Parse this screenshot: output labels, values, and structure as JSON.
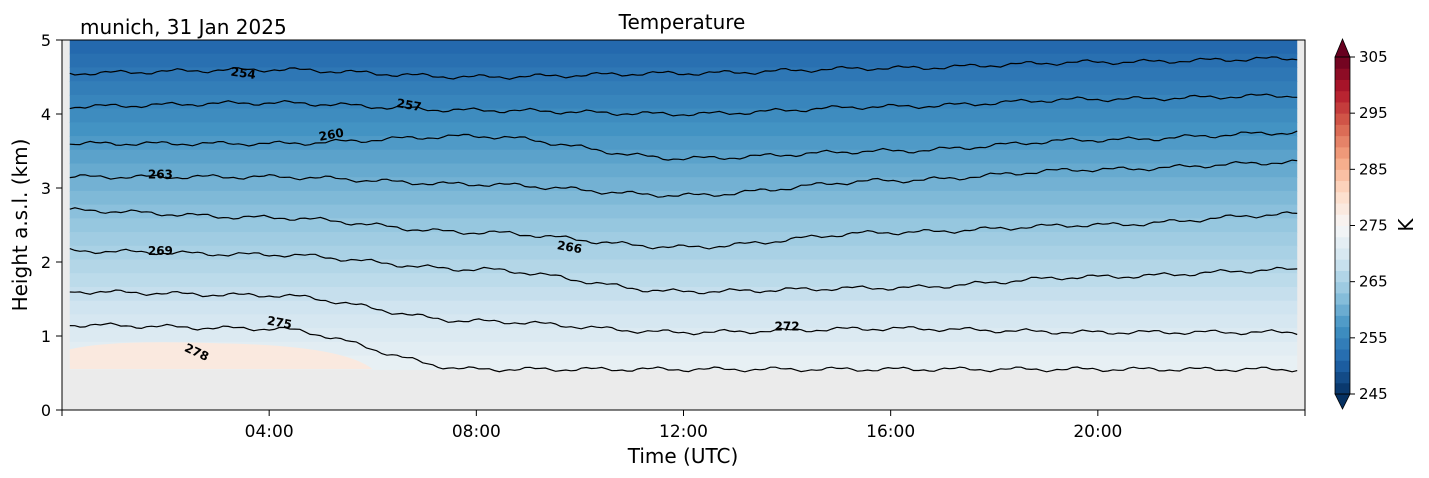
{
  "figure": {
    "title": "Temperature",
    "location_date": "munich, 31 Jan 2025"
  },
  "chart_data": {
    "type": "heatmap",
    "title": "Temperature",
    "xlabel": "Time (UTC)",
    "ylabel": "Height a.s.l. (km)",
    "x_range_hours": [
      0,
      24
    ],
    "xticks": [
      {
        "value": 4,
        "label": "04:00"
      },
      {
        "value": 8,
        "label": "08:00"
      },
      {
        "value": 12,
        "label": "12:00"
      },
      {
        "value": 16,
        "label": "16:00"
      },
      {
        "value": 20,
        "label": "20:00"
      }
    ],
    "ylim": [
      0,
      5
    ],
    "yticks": [
      {
        "value": 0,
        "label": "0"
      },
      {
        "value": 1,
        "label": "1"
      },
      {
        "value": 2,
        "label": "2"
      },
      {
        "value": 3,
        "label": "3"
      },
      {
        "value": 4,
        "label": "4"
      },
      {
        "value": 5,
        "label": "5"
      }
    ],
    "no_data_below_km": 0.55,
    "colorbar": {
      "label": "K",
      "range": [
        245,
        305
      ],
      "ticks": [
        {
          "value": 245,
          "label": "245"
        },
        {
          "value": 255,
          "label": "255"
        },
        {
          "value": 265,
          "label": "265"
        },
        {
          "value": 275,
          "label": "275"
        },
        {
          "value": 285,
          "label": "285"
        },
        {
          "value": 295,
          "label": "295"
        },
        {
          "value": 305,
          "label": "305"
        }
      ],
      "colormap": "RdBu_r",
      "extend": "both"
    },
    "contour_lines": [
      {
        "value": 254,
        "heights_km": [
          4.55,
          4.6,
          4.5,
          4.55,
          4.62,
          4.7,
          4.75
        ]
      },
      {
        "value": 257,
        "heights_km": [
          4.1,
          4.15,
          4.05,
          4.0,
          4.1,
          4.2,
          4.25
        ]
      },
      {
        "value": 260,
        "heights_km": [
          3.6,
          3.6,
          3.7,
          3.4,
          3.5,
          3.65,
          3.75
        ]
      },
      {
        "value": 263,
        "heights_km": [
          3.15,
          3.15,
          3.05,
          2.9,
          3.1,
          3.25,
          3.35
        ]
      },
      {
        "value": 266,
        "heights_km": [
          2.7,
          2.6,
          2.4,
          2.2,
          2.4,
          2.5,
          2.65
        ]
      },
      {
        "value": 269,
        "heights_km": [
          2.15,
          2.1,
          1.9,
          1.6,
          1.65,
          1.8,
          1.9
        ]
      },
      {
        "value": 272,
        "heights_km": [
          1.6,
          1.55,
          1.2,
          1.05,
          1.1,
          1.05,
          1.05
        ]
      },
      {
        "value": 275,
        "heights_km": [
          1.15,
          1.1,
          0.55,
          0.55,
          0.55,
          0.55,
          0.55
        ]
      }
    ],
    "contour_labels": [
      {
        "text": "254",
        "hour": 3.5,
        "km": 4.55,
        "angle": 8
      },
      {
        "text": "257",
        "hour": 6.7,
        "km": 4.12,
        "angle": 10
      },
      {
        "text": "260",
        "hour": 5.2,
        "km": 3.72,
        "angle": -10
      },
      {
        "text": "263",
        "hour": 1.9,
        "km": 3.18,
        "angle": 0
      },
      {
        "text": "269",
        "hour": 1.9,
        "km": 2.15,
        "angle": 0
      },
      {
        "text": "266",
        "hour": 9.8,
        "km": 2.2,
        "angle": 10
      },
      {
        "text": "275",
        "hour": 4.2,
        "km": 1.18,
        "angle": 10
      },
      {
        "text": "272",
        "hour": 14.0,
        "km": 1.13,
        "angle": 0
      },
      {
        "text": "278",
        "hour": 2.6,
        "km": 0.78,
        "angle": 25
      }
    ],
    "warm_region": {
      "value": 278,
      "hour_range": [
        0,
        6.0
      ],
      "max_km": 0.9
    },
    "temperature_at_top_K": 251,
    "temperature_at_lowest_data_K": 273
  }
}
